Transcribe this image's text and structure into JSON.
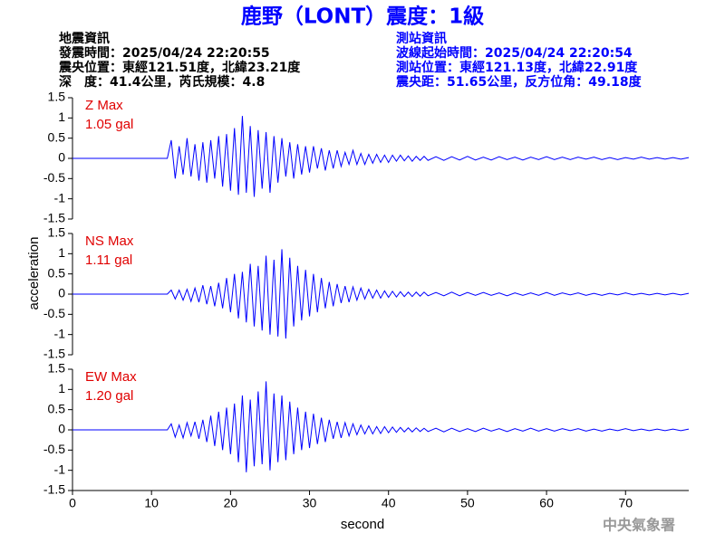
{
  "header": {
    "title": "鹿野（LONT）震度：1級",
    "left": [
      "地震資訊",
      "發震時間：2025/04/24 22:20:55",
      "震央位置：東經121.51度，北緯23.21度",
      "深　度：41.4公里，芮氏規模：4.8"
    ],
    "right": [
      "測站資訊",
      "波線起始時間：2025/04/24 22:20:54",
      "測站位置：東經121.13度，北緯22.91度",
      "震央距：51.65公里，反方位角：49.18度"
    ]
  },
  "chart_data": [
    {
      "type": "line",
      "annotation": [
        "Z Max",
        "1.05 gal"
      ],
      "x": [
        0,
        12,
        12.5,
        13,
        13.5,
        14,
        14.5,
        15,
        15.5,
        16,
        16.5,
        17,
        17.5,
        18,
        18.5,
        19,
        19.5,
        20,
        20.5,
        21,
        21.5,
        22,
        22.5,
        23,
        23.5,
        24,
        24.5,
        25,
        25.5,
        26,
        26.5,
        27,
        27.5,
        28,
        28.5,
        29,
        29.5,
        30,
        30.5,
        31,
        31.5,
        32,
        32.5,
        33,
        33.5,
        34,
        34.5,
        35,
        35.5,
        36,
        36.5,
        37,
        37.5,
        38,
        38.5,
        39,
        39.5,
        40,
        40.5,
        41,
        41.5,
        42,
        42.5,
        43,
        43.5,
        44,
        44.5,
        45,
        46,
        47,
        48,
        49,
        50,
        51,
        52,
        53,
        54,
        55,
        56,
        57,
        58,
        59,
        60,
        61,
        62,
        63,
        64,
        65,
        66,
        67,
        68,
        69,
        70,
        71,
        72,
        73,
        74,
        75,
        76,
        77,
        78
      ],
      "series": [
        {
          "color": "#0000ff",
          "values": [
            0,
            0,
            0.45,
            -0.5,
            0.3,
            -0.4,
            0.5,
            -0.45,
            0.35,
            -0.55,
            0.4,
            -0.6,
            0.45,
            -0.5,
            0.55,
            -0.7,
            0.6,
            -0.8,
            0.75,
            -0.9,
            1.05,
            -0.85,
            0.8,
            -0.95,
            0.7,
            -0.75,
            0.65,
            -0.85,
            0.55,
            -0.6,
            0.5,
            -0.45,
            0.4,
            -0.5,
            0.35,
            -0.4,
            0.3,
            -0.35,
            0.3,
            -0.25,
            0.25,
            -0.3,
            0.2,
            -0.25,
            0.2,
            -0.2,
            0.15,
            -0.15,
            0.2,
            -0.15,
            0.12,
            -0.15,
            0.1,
            -0.12,
            0.1,
            -0.1,
            0.08,
            -0.1,
            0.08,
            -0.07,
            0.08,
            -0.06,
            0.06,
            -0.07,
            0.05,
            -0.05,
            0.05,
            -0.05,
            0.04,
            -0.05,
            0.04,
            -0.04,
            0.05,
            -0.04,
            0.03,
            -0.04,
            0.04,
            -0.03,
            0.03,
            -0.04,
            0.03,
            -0.03,
            0.04,
            -0.03,
            0.03,
            -0.03,
            0.03,
            -0.02,
            0.03,
            -0.03,
            0.02,
            -0.03,
            0.02,
            -0.02,
            0.03,
            -0.02,
            0.02,
            -0.02,
            0.02,
            -0.02,
            0.02
          ]
        }
      ],
      "xlim": [
        0,
        78
      ],
      "ylim": [
        -1.5,
        1.5
      ],
      "yticks": [
        -1.5,
        -1,
        -0.5,
        0,
        0.5,
        1,
        1.5
      ]
    },
    {
      "type": "line",
      "annotation": [
        "NS Max",
        "1.11 gal"
      ],
      "y_label": "acceleration",
      "x": [
        0,
        12,
        12.5,
        13,
        13.5,
        14,
        14.5,
        15,
        15.5,
        16,
        16.5,
        17,
        17.5,
        18,
        18.5,
        19,
        19.5,
        20,
        20.5,
        21,
        21.5,
        22,
        22.5,
        23,
        23.5,
        24,
        24.5,
        25,
        25.5,
        26,
        26.5,
        27,
        27.5,
        28,
        28.5,
        29,
        29.5,
        30,
        30.5,
        31,
        31.5,
        32,
        32.5,
        33,
        33.5,
        34,
        34.5,
        35,
        35.5,
        36,
        36.5,
        37,
        37.5,
        38,
        38.5,
        39,
        39.5,
        40,
        40.5,
        41,
        41.5,
        42,
        42.5,
        43,
        43.5,
        44,
        44.5,
        45,
        46,
        47,
        48,
        49,
        50,
        51,
        52,
        53,
        54,
        55,
        56,
        57,
        58,
        59,
        60,
        61,
        62,
        63,
        64,
        65,
        66,
        67,
        68,
        69,
        70,
        71,
        72,
        73,
        74,
        75,
        76,
        77,
        78
      ],
      "series": [
        {
          "color": "#0000ff",
          "values": [
            0,
            0,
            0.1,
            -0.12,
            0.1,
            -0.15,
            0.12,
            -0.18,
            0.15,
            -0.2,
            0.22,
            -0.25,
            0.2,
            -0.3,
            0.28,
            -0.35,
            0.4,
            -0.45,
            0.5,
            -0.6,
            0.55,
            -0.7,
            0.75,
            -0.8,
            0.7,
            -0.9,
            0.95,
            -1.0,
            0.85,
            -1.05,
            1.11,
            -1.1,
            0.9,
            -0.8,
            0.7,
            -0.65,
            0.6,
            -0.55,
            0.5,
            -0.45,
            0.4,
            -0.35,
            0.3,
            -0.3,
            0.25,
            -0.22,
            0.2,
            -0.2,
            0.18,
            -0.15,
            0.15,
            -0.12,
            0.12,
            -0.1,
            0.1,
            -0.1,
            0.08,
            -0.08,
            0.07,
            -0.07,
            0.06,
            -0.06,
            0.05,
            -0.06,
            0.05,
            -0.05,
            0.05,
            -0.04,
            0.04,
            -0.04,
            0.05,
            -0.04,
            0.04,
            -0.03,
            0.04,
            -0.03,
            0.03,
            -0.04,
            0.03,
            -0.03,
            0.03,
            -0.03,
            0.04,
            -0.03,
            0.03,
            -0.02,
            0.03,
            -0.03,
            0.02,
            -0.03,
            0.02,
            -0.02,
            0.03,
            -0.02,
            0.02,
            -0.02,
            0.02,
            -0.02,
            0.02,
            -0.02,
            0.02
          ]
        }
      ],
      "xlim": [
        0,
        78
      ],
      "ylim": [
        -1.5,
        1.5
      ],
      "yticks": [
        -1.5,
        -1,
        -0.5,
        0,
        0.5,
        1,
        1.5
      ]
    },
    {
      "type": "line",
      "annotation": [
        "EW Max",
        "1.20 gal"
      ],
      "x_label": "second",
      "x": [
        0,
        12,
        12.5,
        13,
        13.5,
        14,
        14.5,
        15,
        15.5,
        16,
        16.5,
        17,
        17.5,
        18,
        18.5,
        19,
        19.5,
        20,
        20.5,
        21,
        21.5,
        22,
        22.5,
        23,
        23.5,
        24,
        24.5,
        25,
        25.5,
        26,
        26.5,
        27,
        27.5,
        28,
        28.5,
        29,
        29.5,
        30,
        30.5,
        31,
        31.5,
        32,
        32.5,
        33,
        33.5,
        34,
        34.5,
        35,
        35.5,
        36,
        36.5,
        37,
        37.5,
        38,
        38.5,
        39,
        39.5,
        40,
        40.5,
        41,
        41.5,
        42,
        42.5,
        43,
        43.5,
        44,
        44.5,
        45,
        46,
        47,
        48,
        49,
        50,
        51,
        52,
        53,
        54,
        55,
        56,
        57,
        58,
        59,
        60,
        61,
        62,
        63,
        64,
        65,
        66,
        67,
        68,
        69,
        70,
        71,
        72,
        73,
        74,
        75,
        76,
        77,
        78
      ],
      "series": [
        {
          "color": "#0000ff",
          "values": [
            0,
            0,
            0.15,
            -0.18,
            0.12,
            -0.2,
            0.18,
            -0.15,
            0.2,
            -0.22,
            0.25,
            -0.3,
            0.35,
            -0.4,
            0.45,
            -0.5,
            0.55,
            -0.6,
            0.65,
            -0.8,
            0.85,
            -1.05,
            0.75,
            -0.9,
            0.95,
            -0.85,
            1.2,
            -1.0,
            0.9,
            -0.8,
            0.85,
            -0.75,
            0.7,
            -0.6,
            0.55,
            -0.5,
            0.45,
            -0.45,
            0.4,
            -0.35,
            0.3,
            -0.3,
            0.25,
            -0.22,
            0.2,
            -0.2,
            0.18,
            -0.15,
            0.15,
            -0.12,
            0.12,
            -0.1,
            0.1,
            -0.1,
            0.08,
            -0.09,
            0.08,
            -0.07,
            0.07,
            -0.06,
            0.06,
            -0.05,
            0.05,
            -0.05,
            0.05,
            -0.04,
            0.04,
            -0.04,
            0.04,
            -0.05,
            0.04,
            -0.04,
            0.03,
            -0.04,
            0.04,
            -0.03,
            0.03,
            -0.04,
            0.03,
            -0.03,
            0.04,
            -0.03,
            0.03,
            -0.03,
            0.03,
            -0.02,
            0.03,
            -0.03,
            0.02,
            -0.03,
            0.02,
            -0.02,
            0.03,
            -0.02,
            0.02,
            -0.02,
            0.02,
            -0.02,
            0.02,
            -0.02,
            0.02
          ]
        }
      ],
      "xlim": [
        0,
        78
      ],
      "ylim": [
        -1.5,
        1.5
      ],
      "yticks": [
        -1.5,
        -1,
        -0.5,
        0,
        0.5,
        1,
        1.5
      ],
      "xticks": [
        0,
        10,
        20,
        30,
        40,
        50,
        60,
        70
      ]
    }
  ],
  "footer": "中央氣象署"
}
